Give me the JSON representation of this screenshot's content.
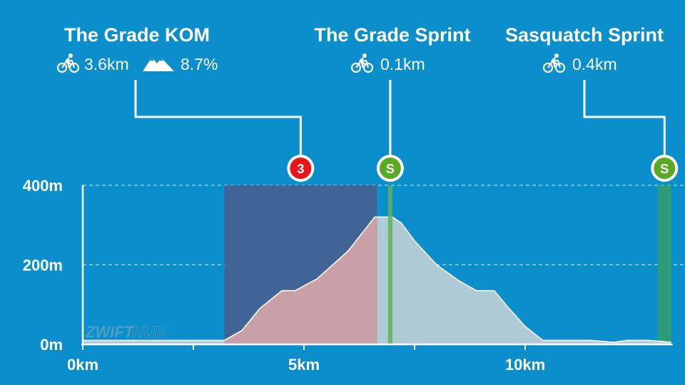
{
  "chart_data": {
    "type": "area",
    "xlabel": "",
    "ylabel": "",
    "x_unit": "km",
    "y_unit": "m",
    "xlim": [
      0,
      13.3
    ],
    "ylim": [
      0,
      400
    ],
    "x_ticks": [
      {
        "value": 0,
        "label": "0km"
      },
      {
        "value": 5,
        "label": "5km"
      },
      {
        "value": 10,
        "label": "10km"
      }
    ],
    "x_minor_ticks": [
      2.5,
      7.5
    ],
    "y_ticks": [
      {
        "value": 0,
        "label": "0m"
      },
      {
        "value": 200,
        "label": "200m"
      },
      {
        "value": 400,
        "label": "400m"
      }
    ],
    "grid": true,
    "series": [
      {
        "x": [
          0,
          1,
          2,
          2.5,
          3.2,
          3.6,
          4,
          4.5,
          4.8,
          5.3,
          6,
          6.6,
          7.0,
          7.2,
          7.5,
          8,
          8.5,
          8.9,
          9.3,
          9.6,
          10,
          10.4,
          10.7,
          11.5,
          12,
          12.3,
          12.8,
          13.3
        ],
        "y": [
          10,
          10,
          10,
          10,
          10,
          35,
          90,
          135,
          135,
          165,
          235,
          320,
          320,
          305,
          260,
          200,
          160,
          135,
          135,
          95,
          45,
          10,
          10,
          10,
          5,
          10,
          10,
          5
        ]
      }
    ],
    "segments": [
      {
        "name": "The Grade KOM",
        "type": "KOM",
        "category": "3",
        "start_km": 3.2,
        "end_km": 6.65,
        "distance": "3.6km",
        "grade": "8.7%"
      },
      {
        "name": "The Grade Sprint",
        "type": "Sprint",
        "category": "S",
        "start_km": 6.9,
        "end_km": 7.0,
        "distance": "0.1km"
      },
      {
        "name": "Sasquatch Sprint",
        "type": "Sprint",
        "category": "S",
        "start_km": 13.0,
        "end_km": 13.3,
        "distance": "0.4km"
      }
    ]
  },
  "segment_labels": [
    {
      "title": "The Grade KOM",
      "distance": "3.6km",
      "grade": "8.7%",
      "badge": "3"
    },
    {
      "title": "The Grade Sprint",
      "distance": "0.1km",
      "badge": "S"
    },
    {
      "title": "Sasquatch Sprint",
      "distance": "0.4km",
      "badge": "S"
    }
  ],
  "watermark": {
    "part1": "ZWIFT",
    "part2": "HUB"
  },
  "colors": {
    "background": "#0a8fcc",
    "profile_fill": "#aecbd6",
    "kom_fill": "#c9a0a8",
    "kom_band": "#3f6495",
    "sprint_band": "#2e9c78",
    "sprint_line": "#5fb35a",
    "kom_badge": "#e8161c",
    "sprint_badge": "#5aaa26"
  },
  "icons": {
    "distance": "bicycle-icon",
    "grade": "mountain-icon"
  }
}
